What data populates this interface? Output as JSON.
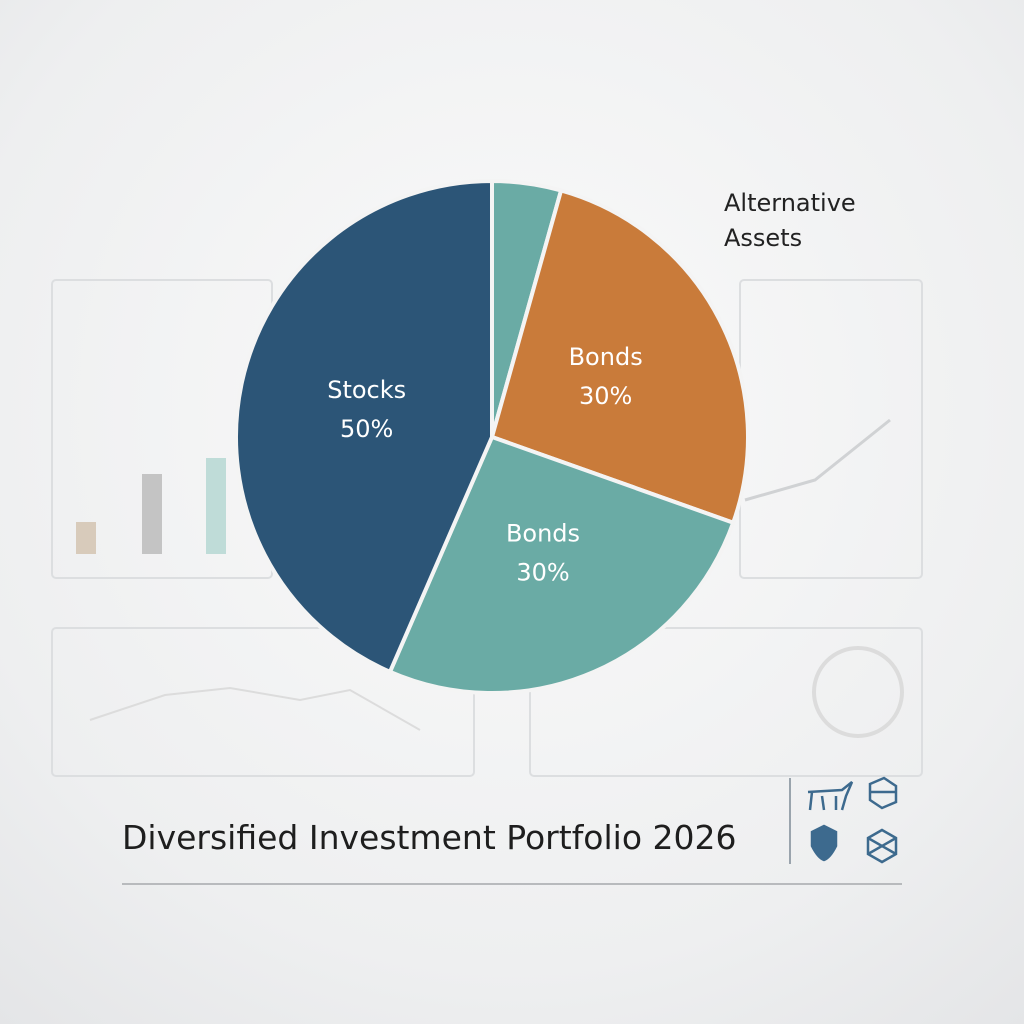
{
  "chart_data": {
    "type": "pie",
    "title": "Diversified Investment Portfolio 2026",
    "categories": [
      "Alternative Assets",
      "Bonds",
      "Bonds",
      "Stocks"
    ],
    "values": [
      5,
      30,
      30,
      50
    ],
    "value_labels": [
      null,
      "30%",
      "30%",
      "50%"
    ],
    "colors": [
      "#6aaba5",
      "#c97b3a",
      "#6aaba5",
      "#2c5577"
    ]
  }
}
